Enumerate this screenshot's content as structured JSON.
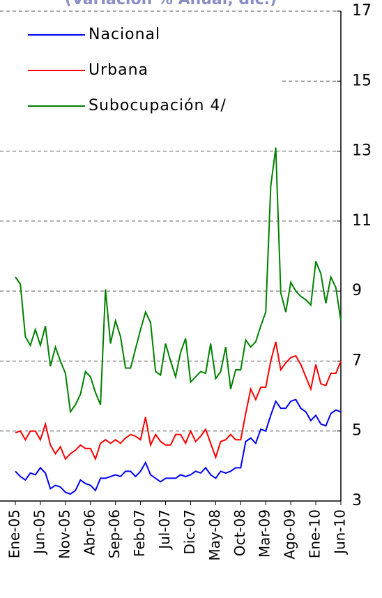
{
  "chart_data": {
    "type": "line",
    "title": "(Variación % Anual, dic.)",
    "categories": [
      "Ene-05",
      null,
      null,
      null,
      null,
      "Jun-05",
      null,
      null,
      null,
      null,
      "Nov-05",
      null,
      null,
      null,
      null,
      "Abr-06",
      null,
      null,
      null,
      null,
      "Sep-06",
      null,
      null,
      null,
      null,
      "Feb-07",
      null,
      null,
      null,
      null,
      "Jul-07",
      null,
      null,
      null,
      null,
      "Dic-07",
      null,
      null,
      null,
      null,
      "May-08",
      null,
      null,
      null,
      null,
      "Oct-08",
      null,
      null,
      null,
      null,
      "Mar-09",
      null,
      null,
      null,
      null,
      "Ago-09",
      null,
      null,
      null,
      null,
      "Ene-10",
      null,
      null,
      null,
      null,
      "Jun-10"
    ],
    "series": [
      {
        "name": "Nacional",
        "color": "#0000ff",
        "values": [
          3.85,
          3.7,
          3.6,
          3.8,
          3.75,
          3.95,
          3.8,
          3.35,
          3.45,
          3.4,
          3.25,
          3.2,
          3.3,
          3.6,
          3.5,
          3.45,
          3.3,
          3.65,
          3.65,
          3.7,
          3.75,
          3.7,
          3.85,
          3.85,
          3.7,
          3.85,
          4.1,
          3.75,
          3.65,
          3.55,
          3.65,
          3.65,
          3.65,
          3.75,
          3.7,
          3.75,
          3.85,
          3.8,
          3.95,
          3.75,
          3.65,
          3.85,
          3.8,
          3.85,
          3.95,
          3.95,
          4.7,
          4.8,
          4.65,
          5.05,
          5.0,
          5.45,
          5.85,
          5.65,
          5.65,
          5.85,
          5.9,
          5.65,
          5.55,
          5.3,
          5.45,
          5.2,
          5.15,
          5.5,
          5.6,
          5.55
        ]
      },
      {
        "name": "Urbana",
        "color": "#ff0000",
        "values": [
          4.95,
          5.0,
          4.75,
          5.0,
          5.0,
          4.75,
          5.2,
          4.6,
          4.35,
          4.55,
          4.2,
          4.35,
          4.45,
          4.6,
          4.5,
          4.5,
          4.2,
          4.65,
          4.75,
          4.65,
          4.75,
          4.65,
          4.8,
          4.9,
          4.85,
          4.75,
          5.4,
          4.6,
          4.9,
          4.7,
          4.6,
          4.6,
          4.9,
          4.9,
          4.65,
          5.0,
          4.7,
          4.85,
          5.05,
          4.65,
          4.25,
          4.7,
          4.75,
          4.9,
          4.75,
          4.75,
          5.5,
          6.2,
          5.9,
          6.25,
          6.25,
          7.0,
          7.55,
          6.75,
          6.95,
          7.1,
          7.15,
          6.9,
          6.55,
          6.2,
          6.9,
          6.35,
          6.3,
          6.65,
          6.65,
          7.0
        ]
      },
      {
        "name": "Subocupación 4/",
        "color": "#008000",
        "values": [
          9.4,
          9.2,
          7.7,
          7.45,
          7.9,
          7.45,
          8.0,
          6.85,
          7.4,
          7.0,
          6.65,
          5.55,
          5.75,
          6.05,
          6.7,
          6.55,
          6.1,
          5.75,
          9.05,
          7.5,
          8.15,
          7.7,
          6.8,
          6.8,
          7.35,
          7.9,
          8.4,
          8.1,
          6.7,
          6.6,
          7.5,
          7.0,
          6.55,
          7.25,
          7.65,
          6.4,
          6.55,
          6.7,
          6.65,
          7.5,
          6.5,
          6.7,
          7.4,
          6.2,
          6.75,
          6.75,
          7.6,
          7.4,
          7.55,
          8.0,
          8.4,
          12.0,
          13.1,
          8.95,
          8.4,
          9.25,
          9.0,
          8.85,
          8.75,
          8.6,
          9.85,
          9.5,
          8.65,
          9.4,
          9.1,
          8.15
        ]
      }
    ],
    "ylim": [
      3,
      17
    ],
    "yticks": [
      3,
      5,
      7,
      9,
      11,
      13,
      15,
      17
    ],
    "grid": true
  }
}
